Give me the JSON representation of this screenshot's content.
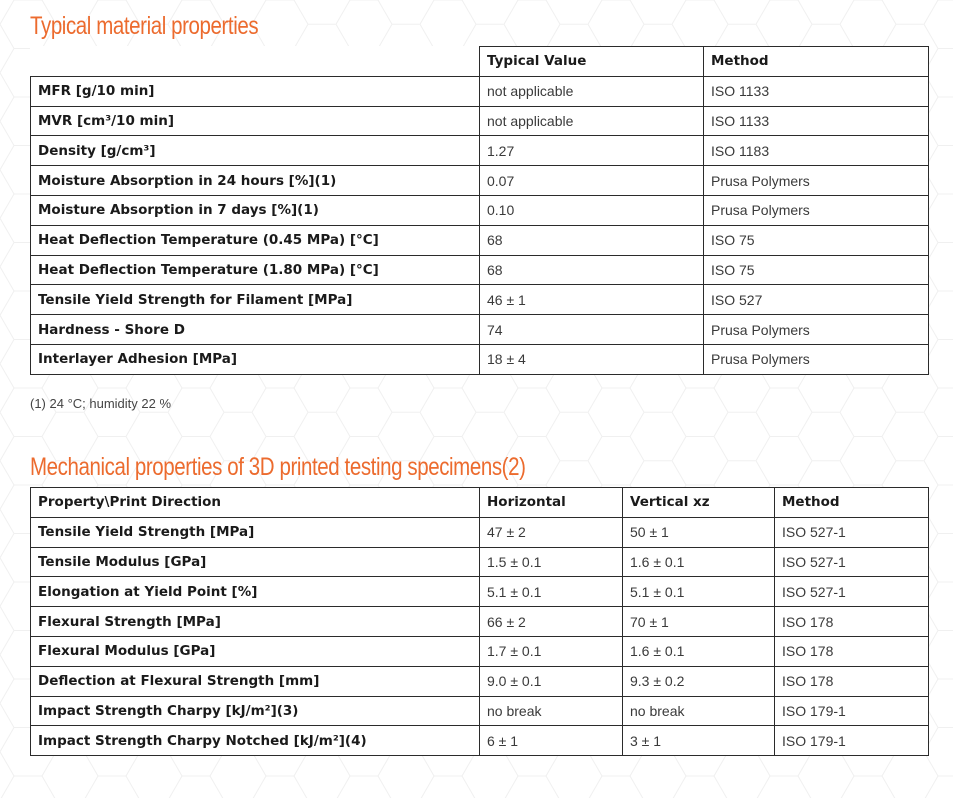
{
  "colors": {
    "accent": "#ec6b2e",
    "border": "#2b2b2b"
  },
  "section1": {
    "title": "Typical material properties",
    "headers": [
      "",
      "Typical Value",
      "Method"
    ],
    "rows": [
      {
        "property": "MFR [g/10 min]",
        "value": "not applicable",
        "method": "ISO 1133"
      },
      {
        "property": "MVR [cm³/10 min]",
        "value": "not applicable",
        "method": "ISO 1133"
      },
      {
        "property": "Density [g/cm³]",
        "value": "1.27",
        "method": "ISO 1183"
      },
      {
        "property": "Moisture Absorption in 24 hours [%](1)",
        "value": "0.07",
        "method": "Prusa Polymers"
      },
      {
        "property": "Moisture Absorption in 7 days [%](1)",
        "value": "0.10",
        "method": "Prusa Polymers"
      },
      {
        "property": "Heat Deflection Temperature (0.45 MPa) [°C]",
        "value": "68",
        "method": "ISO 75"
      },
      {
        "property": "Heat Deflection Temperature (1.80 MPa) [°C]",
        "value": "68",
        "method": "ISO 75"
      },
      {
        "property": "Tensile Yield Strength for Filament [MPa]",
        "value": "46 ± 1",
        "method": "ISO 527"
      },
      {
        "property": "Hardness - Shore D",
        "value": "74",
        "method": "Prusa Polymers"
      },
      {
        "property": "Interlayer Adhesion [MPa]",
        "value": "18 ± 4",
        "method": "Prusa Polymers"
      }
    ],
    "footnote": "(1) 24 °C; humidity 22 %"
  },
  "section2": {
    "title": "Mechanical properties of 3D printed testing specimens(2)",
    "headers": [
      "Property\\Print Direction",
      "Horizontal",
      "Vertical xz",
      "Method"
    ],
    "rows": [
      {
        "property": "Tensile Yield Strength [MPa]",
        "horizontal": "47 ± 2",
        "vertical": "50 ± 1",
        "method": "ISO 527-1"
      },
      {
        "property": "Tensile Modulus [GPa]",
        "horizontal": "1.5 ± 0.1",
        "vertical": "1.6 ± 0.1",
        "method": "ISO 527-1"
      },
      {
        "property": "Elongation at Yield Point [%]",
        "horizontal": "5.1 ± 0.1",
        "vertical": "5.1 ± 0.1",
        "method": "ISO 527-1"
      },
      {
        "property": "Flexural Strength [MPa]",
        "horizontal": "66 ± 2",
        "vertical": "70 ± 1",
        "method": "ISO 178"
      },
      {
        "property": "Flexural Modulus [GPa]",
        "horizontal": "1.7 ± 0.1",
        "vertical": "1.6 ± 0.1",
        "method": "ISO 178"
      },
      {
        "property": "Deflection at Flexural Strength [mm]",
        "horizontal": "9.0 ± 0.1",
        "vertical": "9.3 ± 0.2",
        "method": "ISO 178"
      },
      {
        "property": "Impact Strength Charpy [kJ/m²](3)",
        "horizontal": "no break",
        "vertical": "no break",
        "method": "ISO 179-1"
      },
      {
        "property": "Impact Strength Charpy Notched [kJ/m²](4)",
        "horizontal": "6 ± 1",
        "vertical": "3 ± 1",
        "method": "ISO 179-1"
      }
    ]
  }
}
